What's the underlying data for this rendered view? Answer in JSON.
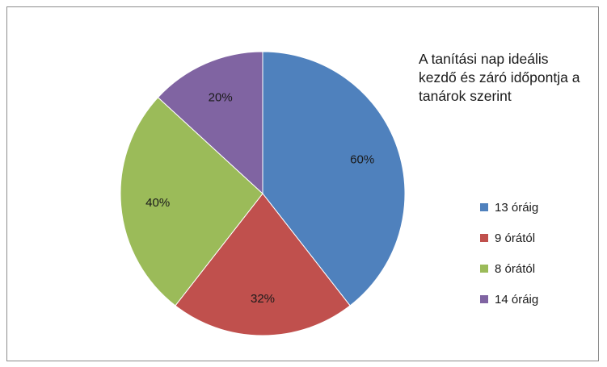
{
  "chart_data": {
    "type": "pie",
    "title": "A tanítási nap ideális kezdő és záró időpontja a tanárok szerint",
    "slices": [
      {
        "name": "13 óráig",
        "value": 60,
        "label": "60%",
        "color": "#4f81bd"
      },
      {
        "name": "9 órától",
        "value": 32,
        "label": "32%",
        "color": "#c0504d"
      },
      {
        "name": "8 órától",
        "value": 40,
        "label": "40%",
        "color": "#9bbb59"
      },
      {
        "name": "14 óráig",
        "value": 20,
        "label": "20%",
        "color": "#8064a2"
      }
    ],
    "legend_position": "right"
  }
}
